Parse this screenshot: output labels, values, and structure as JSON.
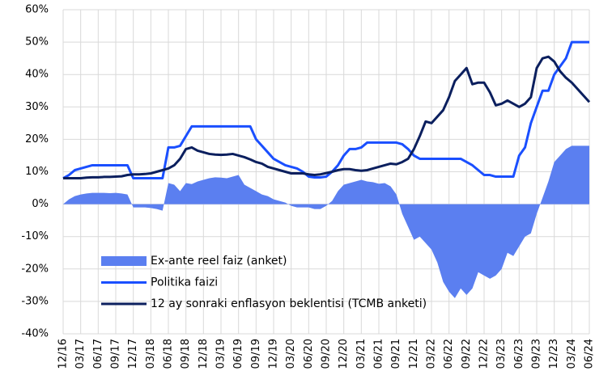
{
  "chart_data": {
    "type": "line",
    "categories": [
      "12/16",
      null,
      null,
      "03/17",
      null,
      null,
      "06/17",
      null,
      null,
      "09/17",
      null,
      null,
      "12/17",
      null,
      null,
      "03/18",
      null,
      null,
      "06/18",
      null,
      null,
      "09/18",
      null,
      null,
      "12/18",
      null,
      null,
      "03/19",
      null,
      null,
      "06/19",
      null,
      null,
      "09/19",
      null,
      null,
      "12/19",
      null,
      null,
      "03/20",
      null,
      null,
      "06/20",
      null,
      null,
      "09/20",
      null,
      null,
      "12/20",
      null,
      null,
      "03/21",
      null,
      null,
      "06/21",
      null,
      null,
      "09/21",
      null,
      null,
      "12/21",
      null,
      null,
      "03/22",
      null,
      null,
      "06/22",
      null,
      null,
      "09/22",
      null,
      null,
      "12/22",
      null,
      null,
      "03/23",
      null,
      null,
      "06/23",
      null,
      null,
      "09/23",
      null,
      null,
      "12/23",
      null,
      null,
      "03/24",
      null,
      null,
      "06/24"
    ],
    "series": [
      {
        "name": "Ex-ante reel faiz (anket)",
        "type": "area",
        "color": "#5b7ff0",
        "values": [
          0,
          1.5,
          2.5,
          3,
          3.3,
          3.5,
          3.5,
          3.5,
          3.4,
          3.5,
          3.3,
          3,
          -1,
          -1,
          -1,
          -1.2,
          -1.5,
          -2,
          6.5,
          6,
          4,
          6.5,
          6.2,
          7,
          7.5,
          8,
          8.3,
          8.2,
          8,
          8.5,
          9,
          6,
          5,
          4,
          3,
          2.5,
          1.5,
          1,
          0.5,
          -0.5,
          -1,
          -1,
          -1,
          -1.5,
          -1.5,
          -0.5,
          1,
          4,
          6,
          6.5,
          7,
          7.5,
          7,
          6.8,
          6.3,
          6.5,
          5.5,
          3,
          -3,
          -7,
          -11,
          -10,
          -12,
          -14,
          -18,
          -24,
          -27,
          -29,
          -26,
          -28,
          -26,
          -21,
          -22,
          -23,
          -22,
          -20,
          -15,
          -16,
          -13,
          -10,
          -9,
          -3,
          2,
          7,
          13,
          15,
          17,
          18,
          18,
          18,
          18
        ]
      },
      {
        "name": "Politika faizi",
        "type": "line",
        "color": "#1a4fff",
        "values": [
          8,
          9,
          10.5,
          11,
          11.5,
          12,
          12,
          12,
          12,
          12,
          12,
          12,
          8,
          8,
          8,
          8,
          8,
          8,
          17.5,
          17.5,
          18,
          21,
          24,
          24,
          24,
          24,
          24,
          24,
          24,
          24,
          24,
          24,
          24,
          20,
          18,
          16,
          14,
          13,
          12,
          11.5,
          11,
          10,
          8.5,
          8.25,
          8.25,
          8.5,
          10,
          12,
          15,
          17,
          17,
          17.5,
          19,
          19,
          19,
          19,
          19,
          19,
          18.5,
          17,
          15,
          14,
          14,
          14,
          14,
          14,
          14,
          14,
          14,
          13,
          12,
          10.5,
          9,
          9,
          8.5,
          8.5,
          8.5,
          8.5,
          15,
          17.5,
          25,
          30,
          35,
          35,
          40,
          42.5,
          45,
          50,
          50,
          50,
          50
        ]
      },
      {
        "name": "12 ay sonraki enflasyon beklentisi (TCMB anketi)",
        "type": "line",
        "color": "#0b1f5e",
        "values": [
          8,
          8,
          8,
          8,
          8.2,
          8.3,
          8.3,
          8.4,
          8.4,
          8.5,
          8.6,
          9,
          9.2,
          9.2,
          9.3,
          9.5,
          10,
          10.5,
          11,
          12,
          14,
          17,
          17.5,
          16.5,
          16,
          15.5,
          15.3,
          15.2,
          15.3,
          15.5,
          15,
          14.5,
          13.8,
          13,
          12.5,
          11.5,
          11,
          10.5,
          10,
          9.5,
          9.5,
          9.5,
          9.2,
          9,
          9.2,
          9.6,
          10,
          10.5,
          10.8,
          10.8,
          10.5,
          10.3,
          10.5,
          11,
          11.5,
          12,
          12.5,
          12.3,
          13,
          14,
          17,
          21,
          25.5,
          25,
          27,
          29,
          33,
          38,
          40,
          42,
          37,
          37.5,
          37.5,
          34.5,
          30.5,
          31,
          32,
          31,
          30,
          31,
          33,
          42,
          45,
          45.5,
          44,
          41,
          39,
          37.5,
          35.5,
          33.5,
          31.5
        ]
      }
    ],
    "ylim": [
      -40,
      60
    ],
    "yticks": [
      {
        "value": -40,
        "label": "-40%"
      },
      {
        "value": -30,
        "label": "-30%"
      },
      {
        "value": -20,
        "label": "-20%"
      },
      {
        "value": -10,
        "label": "-10%"
      },
      {
        "value": 0,
        "label": "0%"
      },
      {
        "value": 10,
        "label": "10%"
      },
      {
        "value": 20,
        "label": "20%"
      },
      {
        "value": 30,
        "label": "30%"
      },
      {
        "value": 40,
        "label": "40%"
      },
      {
        "value": 50,
        "label": "50%"
      },
      {
        "value": 60,
        "label": "60%"
      }
    ],
    "grid": true,
    "legend": "lower-left"
  }
}
